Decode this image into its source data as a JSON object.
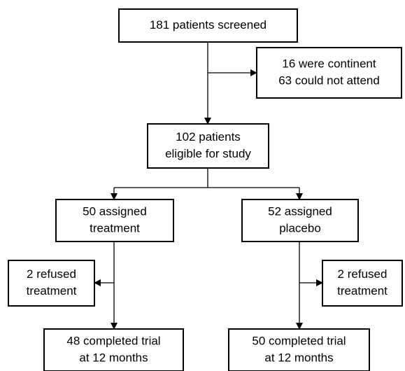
{
  "nodes": [
    {
      "lines": [
        "181 patients screened"
      ]
    },
    {
      "lines": [
        "16 were continent",
        "63 could not attend"
      ]
    },
    {
      "lines": [
        "102 patients",
        "eligible for study"
      ]
    },
    {
      "lines": [
        "50 assigned",
        "treatment"
      ]
    },
    {
      "lines": [
        "52 assigned",
        "placebo"
      ]
    },
    {
      "lines": [
        "2 refused",
        "treatment"
      ]
    },
    {
      "lines": [
        "2 refused",
        "treatment"
      ]
    },
    {
      "lines": [
        "48 completed trial",
        "at 12 months"
      ]
    },
    {
      "lines": [
        "50 completed trial",
        "at 12 months"
      ]
    }
  ]
}
